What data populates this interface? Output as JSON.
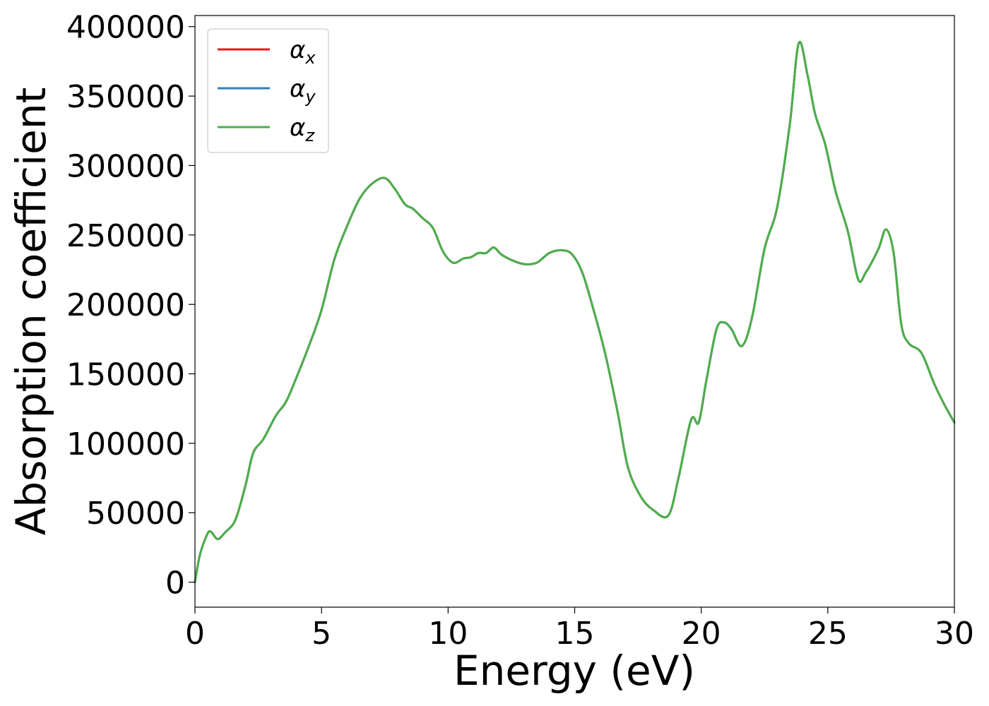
{
  "chart_data": {
    "type": "line",
    "xlabel": "Energy (eV)",
    "ylabel": "Absorption coefficient",
    "xlim": [
      0,
      30
    ],
    "ylim": [
      -18000,
      408000
    ],
    "xticks": [
      0,
      5,
      10,
      15,
      20,
      25,
      30
    ],
    "xtick_labels": [
      "0",
      "5",
      "10",
      "15",
      "20",
      "25",
      "30"
    ],
    "yticks": [
      0,
      50000,
      100000,
      150000,
      200000,
      250000,
      300000,
      350000,
      400000
    ],
    "ytick_labels": [
      "0",
      "50000",
      "100000",
      "150000",
      "200000",
      "250000",
      "300000",
      "350000",
      "400000"
    ],
    "grid": false,
    "legend_position": "top-left",
    "x": [
      0,
      0.2,
      0.5,
      0.65,
      0.9,
      1.2,
      1.6,
      2.0,
      2.3,
      2.7,
      3.2,
      3.6,
      4.0,
      4.5,
      5.0,
      5.5,
      6.0,
      6.5,
      7.0,
      7.5,
      7.9,
      8.3,
      8.6,
      9.0,
      9.4,
      9.8,
      10.2,
      10.6,
      10.9,
      11.2,
      11.5,
      11.8,
      12.1,
      12.5,
      13.0,
      13.5,
      14.0,
      14.5,
      14.9,
      15.3,
      15.7,
      16.2,
      16.7,
      17.1,
      17.6,
      18.1,
      18.7,
      19.1,
      19.6,
      19.9,
      20.2,
      20.6,
      20.9,
      21.2,
      21.6,
      22.0,
      22.5,
      23.0,
      23.5,
      23.85,
      24.2,
      24.5,
      24.9,
      25.3,
      25.8,
      26.2,
      26.5,
      27.0,
      27.3,
      27.6,
      27.9,
      28.2,
      28.7,
      29.2,
      29.6,
      30.0
    ],
    "series": [
      {
        "name": "α_x",
        "color": "#e41a1c",
        "values": [
          0,
          20000,
          35000,
          36000,
          31000,
          36000,
          45000,
          70000,
          93000,
          103000,
          120000,
          130000,
          147000,
          170000,
          196000,
          232000,
          256000,
          276000,
          287000,
          291000,
          283000,
          272000,
          269000,
          262000,
          255000,
          238000,
          230000,
          233000,
          234000,
          237000,
          237000,
          241000,
          236000,
          232000,
          229000,
          230000,
          237000,
          239000,
          236000,
          223000,
          199000,
          165000,
          122000,
          83000,
          62000,
          52000,
          48000,
          75000,
          117000,
          115000,
          145000,
          182000,
          187000,
          182000,
          170000,
          190000,
          240000,
          270000,
          330000,
          388000,
          365000,
          337000,
          315000,
          282000,
          252000,
          218000,
          223000,
          240000,
          254000,
          237000,
          186000,
          172000,
          165000,
          143000,
          128000,
          115000
        ]
      },
      {
        "name": "α_y",
        "color": "#377eb8",
        "values": [
          0,
          20000,
          35000,
          36000,
          31000,
          36000,
          45000,
          70000,
          93000,
          103000,
          120000,
          130000,
          147000,
          170000,
          196000,
          232000,
          256000,
          276000,
          287000,
          291000,
          283000,
          272000,
          269000,
          262000,
          255000,
          238000,
          230000,
          233000,
          234000,
          237000,
          237000,
          241000,
          236000,
          232000,
          229000,
          230000,
          237000,
          239000,
          236000,
          223000,
          199000,
          165000,
          122000,
          83000,
          62000,
          52000,
          48000,
          75000,
          117000,
          115000,
          145000,
          182000,
          187000,
          182000,
          170000,
          190000,
          240000,
          270000,
          330000,
          388000,
          365000,
          337000,
          315000,
          282000,
          252000,
          218000,
          223000,
          240000,
          254000,
          237000,
          186000,
          172000,
          165000,
          143000,
          128000,
          115000
        ]
      },
      {
        "name": "α_z",
        "color": "#4daf4a",
        "values": [
          0,
          20000,
          35000,
          36000,
          31000,
          36000,
          45000,
          70000,
          93000,
          103000,
          120000,
          130000,
          147000,
          170000,
          196000,
          232000,
          256000,
          276000,
          287000,
          291000,
          283000,
          272000,
          269000,
          262000,
          255000,
          238000,
          230000,
          233000,
          234000,
          237000,
          237000,
          241000,
          236000,
          232000,
          229000,
          230000,
          237000,
          239000,
          236000,
          223000,
          199000,
          165000,
          122000,
          83000,
          62000,
          52000,
          48000,
          75000,
          117000,
          115000,
          145000,
          182000,
          187000,
          182000,
          170000,
          190000,
          240000,
          270000,
          330000,
          388000,
          365000,
          337000,
          315000,
          282000,
          252000,
          218000,
          223000,
          240000,
          254000,
          237000,
          186000,
          172000,
          165000,
          143000,
          128000,
          115000
        ]
      }
    ],
    "legend": [
      {
        "symbol": "α",
        "subscript": "x",
        "color": "#e41a1c"
      },
      {
        "symbol": "α",
        "subscript": "y",
        "color": "#377eb8"
      },
      {
        "symbol": "α",
        "subscript": "z",
        "color": "#4daf4a"
      }
    ]
  }
}
